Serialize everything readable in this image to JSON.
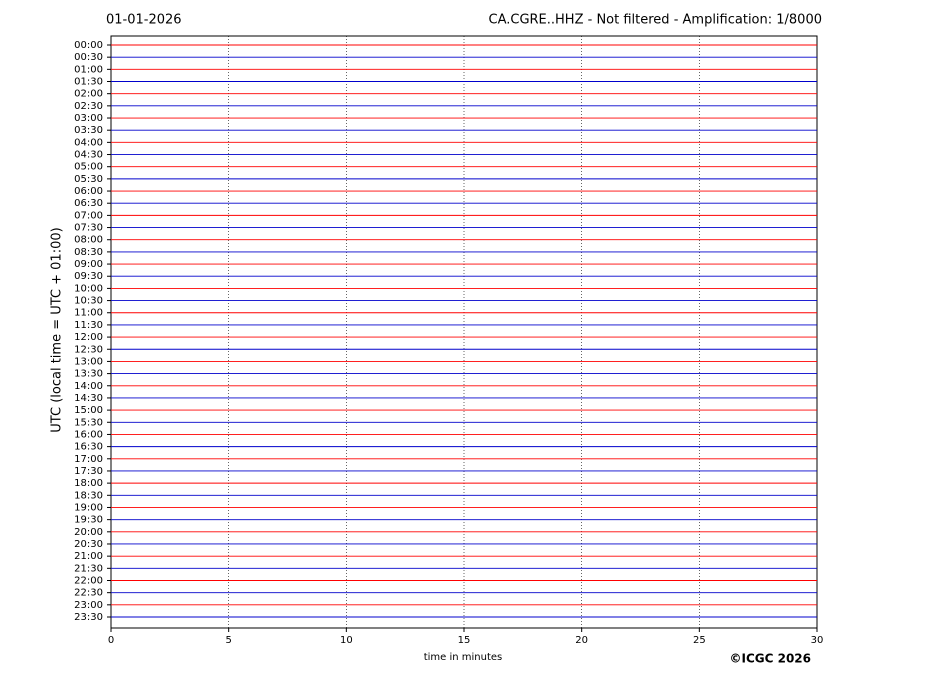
{
  "chart_data": {
    "type": "helicorder",
    "date": "01-01-2026",
    "title": "CA.CGRE..HHZ - Not filtered - Amplification: 1/8000",
    "xlabel": "time in minutes",
    "ylabel": "UTC (local time = UTC + 01:00)",
    "copyright": "©ICGC 2026",
    "xlim": [
      0,
      30
    ],
    "xticks": [
      0,
      5,
      10,
      15,
      20,
      25,
      30
    ],
    "grid": true,
    "trace_colors": [
      "#ff0000",
      "#0000cc"
    ],
    "categories": [
      "00:00",
      "00:30",
      "01:00",
      "01:30",
      "02:00",
      "02:30",
      "03:00",
      "03:30",
      "04:00",
      "04:30",
      "05:00",
      "05:30",
      "06:00",
      "06:30",
      "07:00",
      "07:30",
      "08:00",
      "08:30",
      "09:00",
      "09:30",
      "10:00",
      "10:30",
      "11:00",
      "11:30",
      "12:00",
      "12:30",
      "13:00",
      "13:30",
      "14:00",
      "14:30",
      "15:00",
      "15:30",
      "16:00",
      "16:30",
      "17:00",
      "17:30",
      "18:00",
      "18:30",
      "19:00",
      "19:30",
      "20:00",
      "20:30",
      "21:00",
      "21:30",
      "22:00",
      "22:30",
      "23:00",
      "23:30"
    ]
  }
}
